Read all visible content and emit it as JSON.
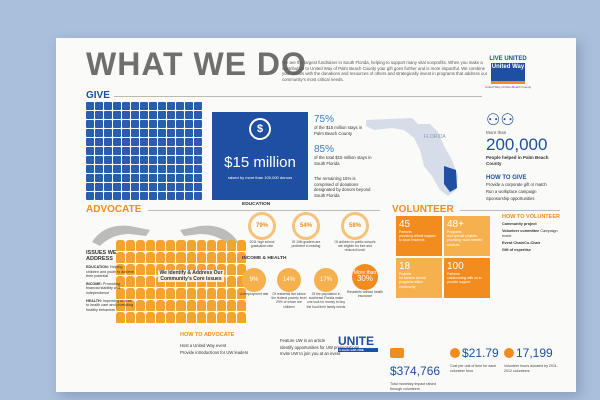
{
  "title": "WHAT WE DO",
  "intro": "We are the largest fundraiser in South Florida, helping to support many vital nonprofits. When you make a contribution to United Way of Palm Beach County your gift goes further and is more impactful. We combine your dollars with the donations and resources of others and strategically invest in programs that address our community's most critical needs.",
  "logo": {
    "live_united": "LIVE UNITED",
    "name": "United Way",
    "sub": "United Way of Palm Beach County"
  },
  "give": {
    "header": "GIVE",
    "amount": "$15 million",
    "raised_by": "raised by more than 100,000 donors",
    "stats": [
      {
        "pct": "75%",
        "text": "of the $15 million stays in Palm Beach County"
      },
      {
        "pct": "85%",
        "text": "of the total $15 million stays in South Florida"
      }
    ],
    "remaining": "The remaining 15% is comprised of donations designated by donors beyond South Florida",
    "map_label": "FLORIDA",
    "more_than": "More than",
    "people_count": "200,000",
    "people_text": "People helped in Palm Beach County",
    "how_to_give": "HOW TO GIVE",
    "how_items": [
      "Provide a corporate gift or match",
      "Run a workplace campaign",
      "Sponsorship opportunities"
    ]
  },
  "advocate": {
    "header": "ADVOCATE",
    "issues_title": "ISSUES WE ADDRESS",
    "issues": [
      {
        "label": "EDUCATION:",
        "text": "Helping children and youth to achieve their potential"
      },
      {
        "label": "INCOME:",
        "text": "Promoting financial stability and independence"
      },
      {
        "label": "HEALTH:",
        "text": "Improving access to health care and promoting healthy behaviors"
      }
    ],
    "core": "We Identify & Address Our Community's Core Issues",
    "education_label": "EDUCATION",
    "education": [
      {
        "pct": "79%",
        "text": "2011 high school graduation rate"
      },
      {
        "pct": "54%",
        "text": "Of 10th graders are proficient in reading"
      },
      {
        "pct": "58%",
        "text": "Of children in public schools are eligible for free and reduced lunch"
      }
    ],
    "income_label": "INCOME & HEALTH",
    "income": [
      {
        "pct": "9%",
        "text": "Unemployment rate"
      },
      {
        "pct": "14%",
        "text": "Of residents live below the federal poverty level 29% of whom are children"
      },
      {
        "pct": "17%",
        "text": "Of the population in southeast Florida make one look for money to buy the food their family needs"
      },
      {
        "pct": "30%",
        "prefix": "More than",
        "text": "Residents without health insurance"
      }
    ],
    "how_header": "HOW TO ADVOCATE",
    "how_items": [
      "Host a United Way event",
      "Provide introductions for UW leaders"
    ],
    "feature_items": [
      "Feature UW in an article",
      "Identify opportunities for UW presentations",
      "Invite UW to join you at an event"
    ],
    "unite_text": "UNITE",
    "unite_sub": "3 starts with ONE"
  },
  "volunteer": {
    "header": "VOLUNTEER",
    "boxes": [
      {
        "num": "45",
        "label": "Partners",
        "text": "providing critical support to local residents",
        "color": "#f28c1e"
      },
      {
        "num": "48+",
        "label": "Programs",
        "text": "and special projects providing much needed services",
        "color": "#f6b04d"
      },
      {
        "num": "18",
        "label": "Projects",
        "text": "for seniors served programs within community",
        "color": "#f6b04d"
      },
      {
        "num": "100",
        "label": "Partners",
        "text": "collaborating with us to provide support",
        "color": "#f28c1e"
      }
    ],
    "how_header": "HOW TO VOLUNTEER",
    "how_items": [
      {
        "b": "Community project",
        "t": ""
      },
      {
        "b": "Volunteer committee",
        "t": "Campaign event"
      },
      {
        "b": "Event Chair/Co-Chair",
        "t": ""
      },
      {
        "b": "Gift of expertise",
        "t": ""
      }
    ],
    "bottom_stats": [
      {
        "value": "$374,766",
        "text": "Total monetary impact raised through volunteers"
      },
      {
        "value": "$21.79",
        "text": "Cost per unit of time for each volunteer hour"
      },
      {
        "value": "17,199",
        "text": "Volunteer hours donated by 2011-2012 volunteers"
      }
    ]
  },
  "colors": {
    "blue": "#1f4fa0",
    "orange": "#f28c1e",
    "light_orange": "#f6b04d",
    "gray": "#6f6f6f"
  }
}
